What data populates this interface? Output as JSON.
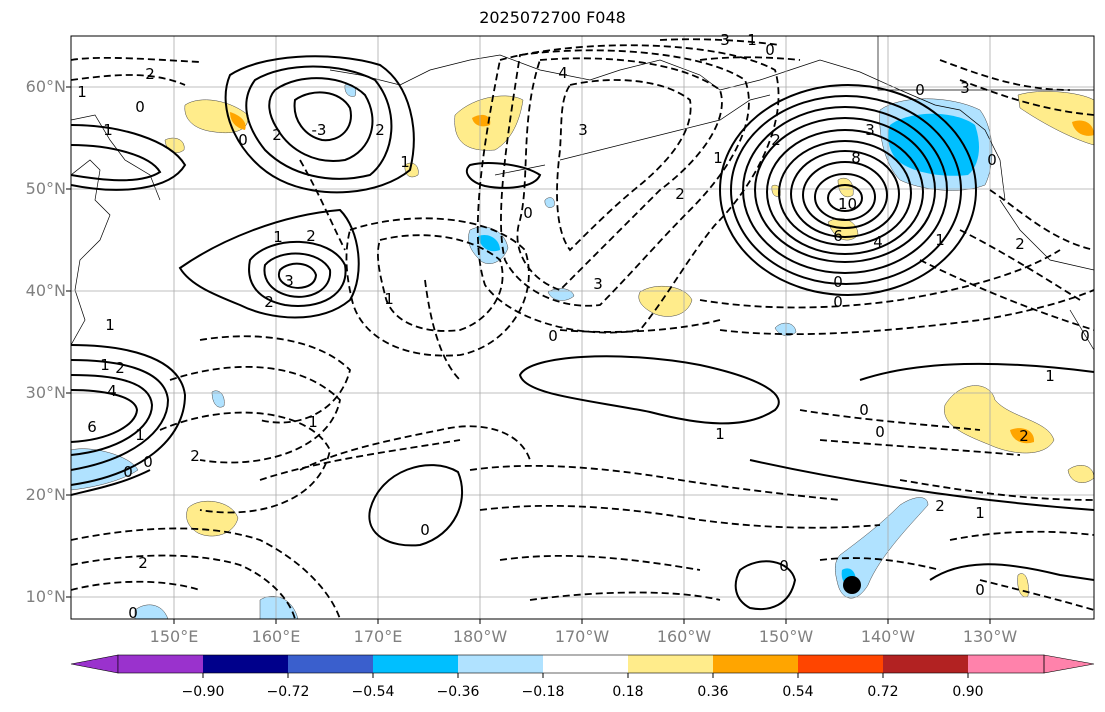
{
  "title": "2025072700 F048",
  "latitude_labels": [
    "60°N",
    "50°N",
    "40°N",
    "30°N",
    "20°N",
    "10°N"
  ],
  "longitude_labels": [
    "150°E",
    "160°E",
    "170°E",
    "180°W",
    "170°W",
    "160°W",
    "150°W",
    "140°W",
    "130°W"
  ],
  "colorbar": {
    "tick_labels": [
      "−0.90",
      "−0.72",
      "−0.54",
      "−0.36",
      "−0.18",
      "0.18",
      "0.36",
      "0.54",
      "0.72",
      "0.90"
    ],
    "colors": [
      "#9a32cd",
      "#00008b",
      "#3a5fcd",
      "#00bfff",
      "#b0e2ff",
      "#ffffff",
      "#ffec8b",
      "#ffa500",
      "#ff4500",
      "#b22222",
      "#ff82ab"
    ]
  },
  "contour_labels": [
    {
      "text": "1",
      "x": 1
    },
    {
      "text": "0",
      "x": 2
    },
    {
      "text": "2",
      "x": 3
    },
    {
      "text": "1",
      "x": 4
    },
    {
      "text": "0",
      "x": 5
    },
    {
      "text": "1",
      "x": 6
    },
    {
      "text": "2",
      "x": 7
    },
    {
      "text": "-3",
      "x": 8
    },
    {
      "text": "2",
      "x": 9
    },
    {
      "text": "1",
      "x": 10
    },
    {
      "text": "0",
      "x": 11
    },
    {
      "text": "2",
      "x": 12
    },
    {
      "text": "3",
      "x": 13
    },
    {
      "text": "2",
      "x": 14
    },
    {
      "text": "1",
      "x": 15
    },
    {
      "text": "4",
      "x": 16
    },
    {
      "text": "3",
      "x": 17
    },
    {
      "text": "2",
      "x": 18
    },
    {
      "text": "1",
      "x": 19
    },
    {
      "text": "0",
      "x": 20
    },
    {
      "text": "3",
      "x": 21
    },
    {
      "text": "1",
      "x": 22
    },
    {
      "text": "0",
      "x": 23
    },
    {
      "text": "0",
      "x": 24
    },
    {
      "text": "2",
      "x": 25
    },
    {
      "text": "3",
      "x": 26
    },
    {
      "text": "8",
      "x": 27
    },
    {
      "text": "10",
      "x": 28
    },
    {
      "text": "6",
      "x": 29
    },
    {
      "text": "4",
      "x": 30
    },
    {
      "text": "0",
      "x": 31
    },
    {
      "text": "0",
      "x": 32
    },
    {
      "text": "3",
      "x": 33
    },
    {
      "text": "2",
      "x": 34
    },
    {
      "text": "1",
      "x": 35
    },
    {
      "text": "0",
      "x": 36
    },
    {
      "text": "1",
      "x": 37
    },
    {
      "text": "2",
      "x": 38
    },
    {
      "text": "4",
      "x": 39
    },
    {
      "text": "6",
      "x": 40
    },
    {
      "text": "1",
      "x": 41
    },
    {
      "text": "1",
      "x": 42
    },
    {
      "text": "2",
      "x": 43
    },
    {
      "text": "1",
      "x": 44
    },
    {
      "text": "0",
      "x": 45
    },
    {
      "text": "0",
      "x": 46
    },
    {
      "text": "1",
      "x": 47
    },
    {
      "text": "0",
      "x": 48
    },
    {
      "text": "0",
      "x": 49
    },
    {
      "text": "2",
      "x": 50
    },
    {
      "text": "1",
      "x": 51
    },
    {
      "text": "2",
      "x": 52
    },
    {
      "text": "2",
      "x": 53
    },
    {
      "text": "0",
      "x": 54
    },
    {
      "text": "0",
      "x": 55
    },
    {
      "text": "1",
      "x": 56
    },
    {
      "text": "0",
      "x": 57
    },
    {
      "text": "0",
      "x": 58
    },
    {
      "text": "0",
      "x": 59
    },
    {
      "text": "3",
      "x": 60
    }
  ]
}
